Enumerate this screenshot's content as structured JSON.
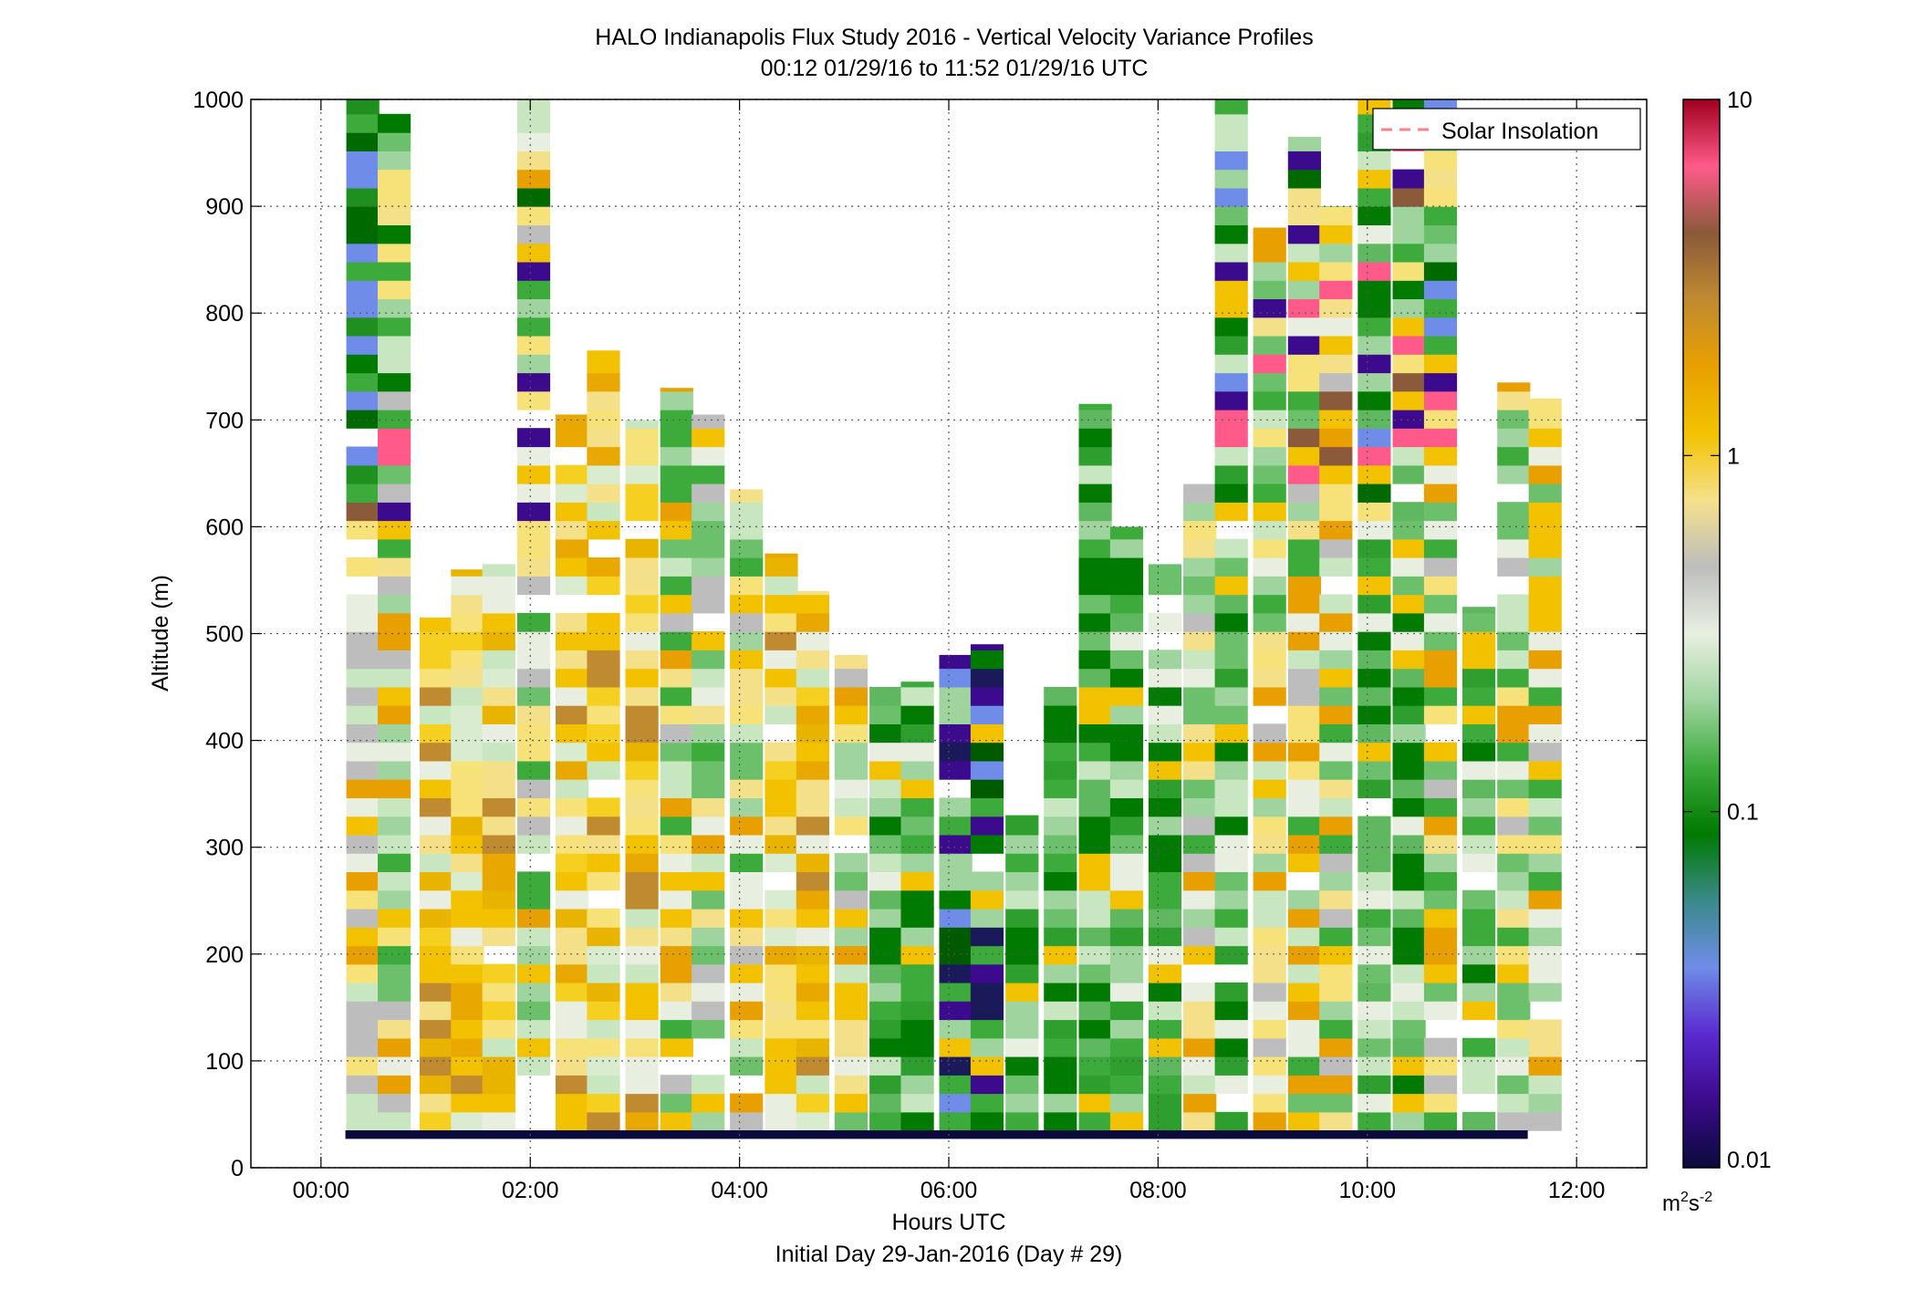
{
  "chart_data": {
    "type": "heatmap",
    "title": "HALO Indianapolis Flux Study 2016 - Vertical Velocity Variance Profiles",
    "subtitle": "00:12 01/29/16 to 11:52 01/29/16  UTC",
    "xlabel": "Hours UTC",
    "xlabel2": "Initial Day 29-Jan-2016 (Day # 29)",
    "ylabel": "Altitude (m)",
    "xlim": [
      -0.67,
      12.67
    ],
    "ylim": [
      0,
      1000
    ],
    "x_tick_labels": [
      "00:00",
      "02:00",
      "04:00",
      "06:00",
      "08:00",
      "10:00",
      "12:00"
    ],
    "x_tick_values": [
      0,
      2,
      4,
      6,
      8,
      10,
      12
    ],
    "y_ticks": [
      0,
      100,
      200,
      300,
      400,
      500,
      600,
      700,
      800,
      900,
      1000
    ],
    "grid": true,
    "legend": {
      "label": "Solar Insolation",
      "placement": "top-right",
      "color": "#ff7f8a",
      "style": "dashed"
    },
    "colorbar": {
      "scale": "log",
      "range": [
        0.01,
        10
      ],
      "ticks": [
        0.01,
        0.1,
        1,
        10
      ],
      "tick_labels": [
        "0.01",
        "0.1",
        "1",
        "10"
      ],
      "units_base": "m",
      "units_exp1": "2",
      "units_mid": "s",
      "units_exp2": "-2",
      "colormap_stops": [
        "#0a0a3c",
        "#3c0a8c",
        "#5a2ad0",
        "#6f8ce8",
        "#3a8a8a",
        "#007a00",
        "#3cab3c",
        "#9fd49f",
        "#e8efe0",
        "#bdbdbd",
        "#f5e08a",
        "#f2c200",
        "#e8a000",
        "#c08a30",
        "#8a5a3a",
        "#ff5a8a",
        "#a00020"
      ]
    },
    "profile_interval_minutes": 20,
    "gate_spacing_m": 17.3,
    "lowest_gate_m": 35,
    "profiles": [
      {
        "time": "00:24",
        "top": 1000,
        "level": "mixed-top-strong-low"
      },
      {
        "time": "00:42",
        "top": 990,
        "level": "mixed"
      },
      {
        "time": "01:06",
        "top": 515,
        "level": "strong"
      },
      {
        "time": "01:24",
        "top": 560,
        "level": "strong"
      },
      {
        "time": "01:42",
        "top": 565,
        "level": "strong"
      },
      {
        "time": "02:02",
        "top": 1000,
        "level": "mixed"
      },
      {
        "time": "02:24",
        "top": 705,
        "level": "strong"
      },
      {
        "time": "02:42",
        "top": 765,
        "level": "strong"
      },
      {
        "time": "03:04",
        "top": 700,
        "level": "strong"
      },
      {
        "time": "03:24",
        "top": 730,
        "level": "mixed"
      },
      {
        "time": "03:42",
        "top": 705,
        "level": "mixed"
      },
      {
        "time": "04:04",
        "top": 635,
        "level": "mixed"
      },
      {
        "time": "04:24",
        "top": 575,
        "level": "strong"
      },
      {
        "time": "04:42",
        "top": 540,
        "level": "strong"
      },
      {
        "time": "05:04",
        "top": 480,
        "level": "mixed"
      },
      {
        "time": "05:24",
        "top": 450,
        "level": "weak"
      },
      {
        "time": "05:42",
        "top": 455,
        "level": "weak"
      },
      {
        "time": "06:04",
        "top": 480,
        "level": "very-weak"
      },
      {
        "time": "06:22",
        "top": 490,
        "level": "very-weak"
      },
      {
        "time": "06:42",
        "top": 330,
        "level": "weak"
      },
      {
        "time": "07:04",
        "top": 450,
        "level": "weak"
      },
      {
        "time": "07:24",
        "top": 715,
        "level": "weak"
      },
      {
        "time": "07:42",
        "top": 600,
        "level": "weak"
      },
      {
        "time": "08:04",
        "top": 565,
        "level": "weak"
      },
      {
        "time": "08:24",
        "top": 640,
        "level": "mixed"
      },
      {
        "time": "08:42",
        "top": 1000,
        "level": "weak"
      },
      {
        "time": "09:04",
        "top": 880,
        "level": "mixed"
      },
      {
        "time": "09:24",
        "top": 965,
        "level": "mixed"
      },
      {
        "time": "09:42",
        "top": 900,
        "level": "mixed"
      },
      {
        "time": "10:04",
        "top": 1000,
        "level": "weak"
      },
      {
        "time": "10:24",
        "top": 1000,
        "level": "weak"
      },
      {
        "time": "10:42",
        "top": 1000,
        "level": "mixed"
      },
      {
        "time": "11:04",
        "top": 525,
        "level": "weak"
      },
      {
        "time": "11:24",
        "top": 735,
        "level": "mixed"
      },
      {
        "time": "11:42",
        "top": 720,
        "level": "mixed"
      }
    ]
  }
}
